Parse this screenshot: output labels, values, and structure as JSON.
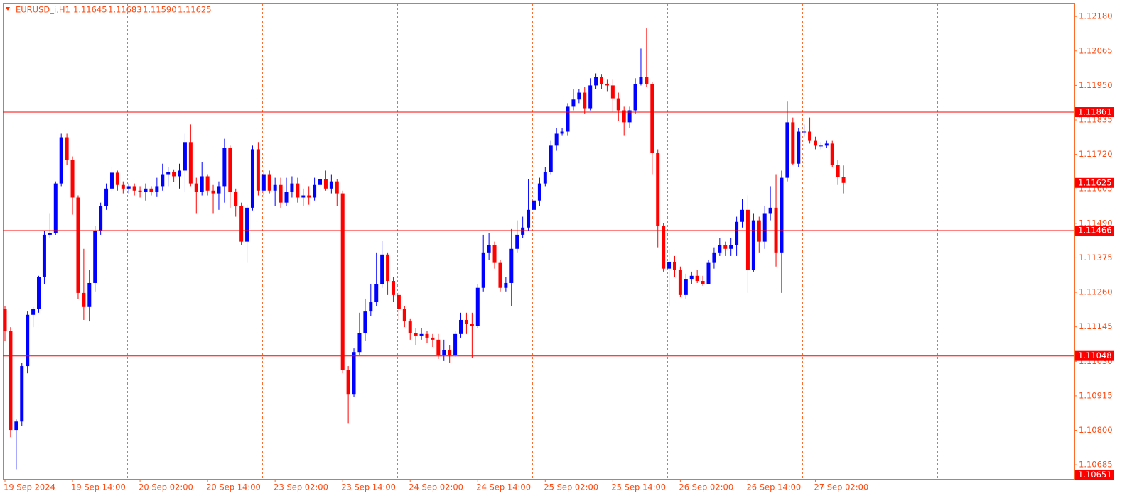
{
  "chart_data": {
    "type": "candlestick",
    "header": {
      "symbol": "EURUSD_i,H1",
      "ohlc": [
        "1.11645",
        "1.11683",
        "1.11590",
        "1.11625"
      ]
    },
    "categories": [
      "19 Sep 2024",
      null,
      null,
      null,
      null,
      null,
      null,
      null,
      null,
      null,
      null,
      null,
      "19 Sep 14:00",
      null,
      null,
      null,
      null,
      null,
      null,
      null,
      null,
      null,
      null,
      null,
      "20 Sep 02:00",
      null,
      null,
      null,
      null,
      null,
      null,
      null,
      null,
      null,
      null,
      null,
      "20 Sep 14:00",
      null,
      null,
      null,
      null,
      null,
      null,
      null,
      null,
      null,
      null,
      null,
      "23 Sep 02:00",
      null,
      null,
      null,
      null,
      null,
      null,
      null,
      null,
      null,
      null,
      null,
      "23 Sep 14:00",
      null,
      null,
      null,
      null,
      null,
      null,
      null,
      null,
      null,
      null,
      null,
      "24 Sep 02:00",
      null,
      null,
      null,
      null,
      null,
      null,
      null,
      null,
      null,
      null,
      null,
      "24 Sep 14:00",
      null,
      null,
      null,
      null,
      null,
      null,
      null,
      null,
      null,
      null,
      null,
      "25 Sep 02:00",
      null,
      null,
      null,
      null,
      null,
      null,
      null,
      null,
      null,
      null,
      null,
      "25 Sep 14:00",
      null,
      null,
      null,
      null,
      null,
      null,
      null,
      null,
      null,
      null,
      null,
      "26 Sep 02:00",
      null,
      null,
      null,
      null,
      null,
      null,
      null,
      null,
      null,
      null,
      null,
      "26 Sep 14:00",
      null,
      null,
      null,
      null,
      null,
      null,
      null,
      null,
      null,
      null,
      null,
      "27 Sep 02:00",
      null,
      null,
      null,
      null,
      null
    ],
    "open": [
      1.11204,
      1.11132,
      1.10801,
      1.10829,
      1.11014,
      1.11185,
      1.11204,
      1.1131,
      1.11452,
      1.11457,
      1.11623,
      1.11777,
      1.11701,
      1.11576,
      1.11258,
      1.11211,
      1.11291,
      1.11464,
      1.11547,
      1.11606,
      1.11659,
      1.11618,
      1.11606,
      1.11614,
      1.11599,
      1.11595,
      1.11606,
      1.11595,
      1.11614,
      1.11654,
      1.11661,
      1.11647,
      1.11666,
      1.11761,
      1.11623,
      1.11595,
      1.11647,
      1.11599,
      1.1159,
      1.11614,
      1.11742,
      1.11595,
      1.11547,
      1.11429,
      1.11542,
      1.11737,
      1.11599,
      1.11654,
      1.11599,
      1.11618,
      1.11559,
      1.11595,
      1.11623,
      1.11576,
      1.11583,
      1.11576,
      1.11618,
      1.11637,
      1.11606,
      1.1163,
      1.1159,
      1.11002,
      1.10919,
      1.11061,
      1.11125,
      1.11196,
      1.11227,
      1.11287,
      1.11386,
      1.11298,
      1.11251,
      1.11204,
      1.11163,
      1.11125,
      1.11116,
      1.11121,
      1.11109,
      1.11102,
      1.1105,
      1.11068,
      1.1105,
      1.11121,
      1.11168,
      1.11156,
      1.11149,
      1.11275,
      1.11393,
      1.11417,
      1.11358,
      1.11275,
      1.11291,
      1.11405,
      1.11452,
      1.11476,
      1.11535,
      1.11566,
      1.11623,
      1.11661,
      1.11749,
      1.11789,
      1.11796,
      1.11879,
      1.11903,
      1.11926,
      1.11874,
      1.1195,
      1.11979,
      1.11955,
      1.1195,
      1.11907,
      1.11867,
      1.11827,
      1.11867,
      1.11955,
      1.11979,
      1.11955,
      1.11725,
      1.11481,
      1.11339,
      1.11362,
      1.11334,
      1.11251,
      1.11305,
      1.11315,
      1.11298,
      1.11287,
      1.11358,
      1.11393,
      1.11417,
      1.11405,
      1.11417,
      1.11495,
      1.11535,
      1.11334,
      1.115,
      1.11429,
      1.11524,
      1.11542,
      1.11393,
      1.11642,
      1.11827,
      1.11689,
      1.11796,
      1.11796,
      1.11765,
      1.11749,
      1.11749,
      1.11756,
      1.11685,
      1.11645
    ],
    "high": [
      1.11215,
      1.11144,
      1.10836,
      1.11026,
      1.11196,
      1.11211,
      1.11315,
      1.11464,
      1.11524,
      1.1163,
      1.11789,
      1.11789,
      1.11713,
      1.11583,
      1.11405,
      1.11334,
      1.11481,
      1.11559,
      1.11623,
      1.11678,
      1.11666,
      1.1163,
      1.11623,
      1.11623,
      1.11614,
      1.11623,
      1.11614,
      1.11642,
      1.11689,
      1.11678,
      1.1167,
      1.11689,
      1.11789,
      1.1182,
      1.11642,
      1.11694,
      1.11654,
      1.11618,
      1.1163,
      1.11772,
      1.11749,
      1.11606,
      1.11559,
      1.11552,
      1.11749,
      1.11761,
      1.11666,
      1.11666,
      1.11642,
      1.11642,
      1.11642,
      1.11647,
      1.11642,
      1.11606,
      1.11614,
      1.11642,
      1.11647,
      1.11666,
      1.11654,
      1.11637,
      1.11599,
      1.11014,
      1.11073,
      1.11192,
      1.11239,
      1.11287,
      1.11393,
      1.11433,
      1.11393,
      1.1131,
      1.11263,
      1.11215,
      1.11173,
      1.1114,
      1.1114,
      1.11132,
      1.11121,
      1.11121,
      1.11102,
      1.11085,
      1.11132,
      1.11192,
      1.11192,
      1.11192,
      1.11287,
      1.11452,
      1.11457,
      1.11429,
      1.11369,
      1.1131,
      1.11471,
      1.115,
      1.11512,
      1.11637,
      1.11583,
      1.11642,
      1.11678,
      1.11765,
      1.11808,
      1.11808,
      1.11891,
      1.11938,
      1.11938,
      1.11945,
      1.11974,
      1.1199,
      1.11986,
      1.11969,
      1.11969,
      1.11926,
      1.11879,
      1.11879,
      1.11974,
      1.12073,
      1.1214,
      1.11962,
      1.11737,
      1.1149,
      1.11405,
      1.11381,
      1.11346,
      1.11322,
      1.11329,
      1.11334,
      1.11315,
      1.11369,
      1.1141,
      1.11441,
      1.11429,
      1.11441,
      1.11512,
      1.11571,
      1.11583,
      1.11524,
      1.11512,
      1.11547,
      1.11614,
      1.11654,
      1.11666,
      1.11896,
      1.11843,
      1.11808,
      1.1182,
      1.11843,
      1.11779,
      1.11761,
      1.11765,
      1.11765,
      1.11701,
      1.11683
    ],
    "low": [
      1.11097,
      1.10777,
      1.1067,
      1.10813,
      1.1099,
      1.11144,
      1.11192,
      1.11287,
      1.11441,
      1.11452,
      1.11614,
      1.11685,
      1.11519,
      1.11239,
      1.11168,
      1.11163,
      1.11263,
      1.11452,
      1.11535,
      1.11595,
      1.11599,
      1.1159,
      1.1159,
      1.11583,
      1.11576,
      1.11566,
      1.11583,
      1.1158,
      1.11599,
      1.11614,
      1.11628,
      1.11606,
      1.11595,
      1.11614,
      1.11524,
      1.11583,
      1.11583,
      1.11524,
      1.11535,
      1.11559,
      1.11542,
      1.11512,
      1.11417,
      1.11358,
      1.11533,
      1.11583,
      1.11583,
      1.1159,
      1.11547,
      1.11542,
      1.11547,
      1.11576,
      1.11559,
      1.11547,
      1.11552,
      1.11566,
      1.11595,
      1.11599,
      1.1159,
      1.11547,
      1.1099,
      1.10824,
      1.10912,
      1.1105,
      1.11097,
      1.1118,
      1.11215,
      1.11275,
      1.11251,
      1.11227,
      1.11168,
      1.11144,
      1.11102,
      1.11085,
      1.11102,
      1.11092,
      1.11078,
      1.11038,
      1.11031,
      1.11026,
      1.11045,
      1.11109,
      1.11121,
      1.11042,
      1.1114,
      1.11263,
      1.11369,
      1.11339,
      1.11263,
      1.11263,
      1.11215,
      1.11393,
      1.11441,
      1.11464,
      1.11476,
      1.11547,
      1.11614,
      1.11654,
      1.11732,
      1.11784,
      1.11784,
      1.11867,
      1.11891,
      1.11855,
      1.11867,
      1.11938,
      1.11938,
      1.11931,
      1.1186,
      1.11832,
      1.11784,
      1.11808,
      1.11855,
      1.1195,
      1.11945,
      1.11654,
      1.1141,
      1.11329,
      1.11215,
      1.1131,
      1.11244,
      1.11239,
      1.11287,
      1.11291,
      1.11282,
      1.11287,
      1.11339,
      1.11381,
      1.11381,
      1.11381,
      1.11381,
      1.11476,
      1.11258,
      1.11329,
      1.11393,
      1.11405,
      1.115,
      1.11346,
      1.11258,
      1.1163,
      1.11685,
      1.11678,
      1.11779,
      1.11756,
      1.11737,
      1.11737,
      1.11742,
      1.11678,
      1.11618,
      1.1159
    ],
    "close": [
      1.11132,
      1.10801,
      1.10829,
      1.11014,
      1.11185,
      1.11204,
      1.1131,
      1.11452,
      1.11457,
      1.11623,
      1.11777,
      1.11701,
      1.11576,
      1.11258,
      1.11211,
      1.11291,
      1.11464,
      1.11547,
      1.11606,
      1.11659,
      1.11618,
      1.11606,
      1.11614,
      1.11599,
      1.11595,
      1.11606,
      1.11595,
      1.11614,
      1.11654,
      1.11661,
      1.11647,
      1.11666,
      1.11761,
      1.11623,
      1.11595,
      1.11647,
      1.11599,
      1.1159,
      1.11614,
      1.11742,
      1.11595,
      1.11547,
      1.11429,
      1.11542,
      1.11737,
      1.11599,
      1.11654,
      1.11599,
      1.11618,
      1.11559,
      1.11595,
      1.11623,
      1.11576,
      1.11583,
      1.11576,
      1.11618,
      1.11637,
      1.11606,
      1.1163,
      1.1159,
      1.11002,
      1.10919,
      1.11061,
      1.11125,
      1.11196,
      1.11227,
      1.11287,
      1.11386,
      1.11298,
      1.11251,
      1.11204,
      1.11163,
      1.11125,
      1.11116,
      1.11121,
      1.11109,
      1.11102,
      1.1105,
      1.11068,
      1.1105,
      1.11121,
      1.11168,
      1.11156,
      1.11149,
      1.11275,
      1.11393,
      1.11417,
      1.11358,
      1.11275,
      1.11291,
      1.11405,
      1.11452,
      1.11476,
      1.11535,
      1.11566,
      1.11623,
      1.11661,
      1.11749,
      1.11789,
      1.11796,
      1.11879,
      1.11903,
      1.11926,
      1.11874,
      1.1195,
      1.11979,
      1.11955,
      1.1195,
      1.11907,
      1.11867,
      1.11827,
      1.11867,
      1.11955,
      1.11979,
      1.11955,
      1.11725,
      1.11481,
      1.11339,
      1.11362,
      1.11334,
      1.11251,
      1.11305,
      1.11315,
      1.11298,
      1.11287,
      1.11358,
      1.11393,
      1.11417,
      1.11405,
      1.11417,
      1.11495,
      1.11535,
      1.11334,
      1.115,
      1.11429,
      1.11524,
      1.11542,
      1.11393,
      1.11642,
      1.11827,
      1.11689,
      1.11796,
      1.11796,
      1.11765,
      1.11749,
      1.11749,
      1.11756,
      1.11685,
      1.11645,
      1.11625
    ],
    "up_color": "#0000ff",
    "down_color": "#ff0000",
    "levels": [
      1.11861,
      1.11466,
      1.11048,
      1.10651
    ],
    "level_color": "#ff0000",
    "ylim": [
      1.10638,
      1.12223
    ],
    "yticks": [
      {
        "value": 1.1218,
        "label": "1.12180"
      },
      {
        "value": 1.12065,
        "label": "1.12065"
      },
      {
        "value": 1.1195,
        "label": "1.11950"
      },
      {
        "value": 1.11835,
        "label": "1.11835"
      },
      {
        "value": 1.1172,
        "label": "1.11720"
      },
      {
        "value": 1.11605,
        "label": "1.11605"
      },
      {
        "value": 1.1149,
        "label": "1.11490"
      },
      {
        "value": 1.11375,
        "label": "1.11375"
      },
      {
        "value": 1.1126,
        "label": "1.11260"
      },
      {
        "value": 1.11145,
        "label": "1.11145"
      },
      {
        "value": 1.1103,
        "label": "1.11030"
      },
      {
        "value": 1.10915,
        "label": "1.10915"
      },
      {
        "value": 1.108,
        "label": "1.10800"
      },
      {
        "value": 1.10685,
        "label": "1.10685"
      }
    ]
  }
}
